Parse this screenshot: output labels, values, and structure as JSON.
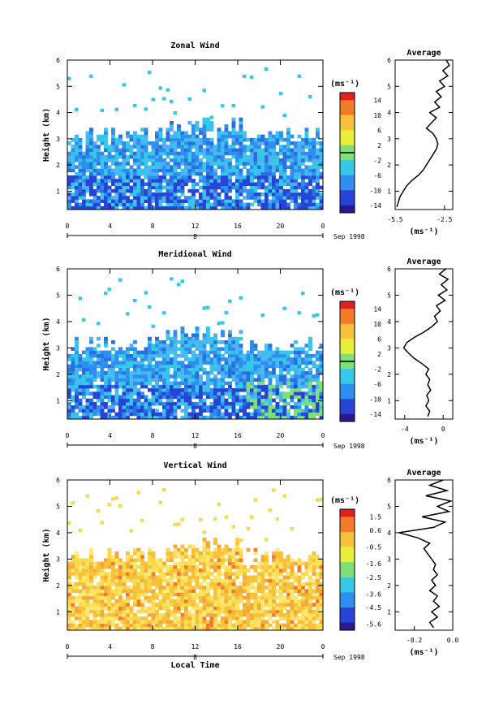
{
  "chart_data": [
    {
      "type": "heatmap",
      "title": "Zonal Wind",
      "ylabel": "Height (km)",
      "x_ticks": [
        "0",
        "4",
        "8",
        "12",
        "16",
        "20",
        "0"
      ],
      "x_range": [
        0,
        24
      ],
      "y_ticks": [
        "1",
        "2",
        "3",
        "4",
        "5",
        "6"
      ],
      "y_range": [
        0.3,
        6
      ],
      "date_label": "8",
      "month_label": "Sep 1998",
      "colorbar": {
        "unit": "(ms⁻¹)",
        "ticks": [
          "14",
          "10",
          "6",
          "2",
          "-2",
          "-6",
          "-10",
          "-14"
        ],
        "range": [
          -16,
          16
        ],
        "marked_level": 0
      },
      "profile": {
        "title": "Average",
        "xlabel": "(ms⁻¹)",
        "x_ticks": [
          "-5.5",
          "-2.5"
        ],
        "x_range": [
          -5.5,
          -2.0
        ],
        "points": [
          [
            -5.4,
            0.4
          ],
          [
            -5.3,
            0.6
          ],
          [
            -5.2,
            0.8
          ],
          [
            -5.0,
            1.0
          ],
          [
            -4.8,
            1.2
          ],
          [
            -4.5,
            1.4
          ],
          [
            -4.1,
            1.6
          ],
          [
            -3.8,
            1.8
          ],
          [
            -3.6,
            2.0
          ],
          [
            -3.4,
            2.2
          ],
          [
            -3.2,
            2.4
          ],
          [
            -3.0,
            2.6
          ],
          [
            -2.9,
            2.8
          ],
          [
            -3.0,
            3.0
          ],
          [
            -3.2,
            3.2
          ],
          [
            -3.6,
            3.4
          ],
          [
            -3.3,
            3.6
          ],
          [
            -3.0,
            3.8
          ],
          [
            -3.4,
            4.0
          ],
          [
            -2.8,
            4.2
          ],
          [
            -3.1,
            4.4
          ],
          [
            -2.7,
            4.6
          ],
          [
            -3.0,
            4.8
          ],
          [
            -2.5,
            5.0
          ],
          [
            -2.8,
            5.2
          ],
          [
            -2.3,
            5.4
          ],
          [
            -2.6,
            5.6
          ],
          [
            -2.2,
            5.8
          ],
          [
            -2.4,
            6.0
          ]
        ]
      }
    },
    {
      "type": "heatmap",
      "title": "Meridional Wind",
      "ylabel": "Height (km)",
      "x_ticks": [
        "0",
        "4",
        "8",
        "12",
        "16",
        "20",
        "0"
      ],
      "x_range": [
        0,
        24
      ],
      "y_ticks": [
        "1",
        "2",
        "3",
        "4",
        "5",
        "6"
      ],
      "y_range": [
        0.3,
        6
      ],
      "date_label": "8",
      "month_label": "Sep 1998",
      "colorbar": {
        "unit": "(ms⁻¹)",
        "ticks": [
          "14",
          "10",
          "6",
          "2",
          "-2",
          "-6",
          "-10",
          "-14"
        ],
        "range": [
          -16,
          16
        ],
        "marked_level": 0
      },
      "profile": {
        "title": "Average",
        "xlabel": "(ms⁻¹)",
        "x_ticks": [
          "-4",
          "0"
        ],
        "x_range": [
          -5.0,
          1.0
        ],
        "points": [
          [
            -1.6,
            0.4
          ],
          [
            -1.4,
            0.6
          ],
          [
            -1.8,
            0.8
          ],
          [
            -1.5,
            1.0
          ],
          [
            -1.7,
            1.2
          ],
          [
            -1.3,
            1.4
          ],
          [
            -1.6,
            1.6
          ],
          [
            -1.4,
            1.8
          ],
          [
            -1.8,
            2.0
          ],
          [
            -1.5,
            2.2
          ],
          [
            -2.2,
            2.4
          ],
          [
            -3.0,
            2.6
          ],
          [
            -3.6,
            2.8
          ],
          [
            -4.1,
            3.0
          ],
          [
            -3.8,
            3.2
          ],
          [
            -3.0,
            3.4
          ],
          [
            -2.0,
            3.6
          ],
          [
            -1.2,
            3.8
          ],
          [
            -0.6,
            4.0
          ],
          [
            -0.9,
            4.2
          ],
          [
            -0.3,
            4.4
          ],
          [
            -0.7,
            4.6
          ],
          [
            0.2,
            4.8
          ],
          [
            -0.5,
            5.0
          ],
          [
            0.4,
            5.2
          ],
          [
            -0.2,
            5.4
          ],
          [
            0.5,
            5.6
          ],
          [
            -0.4,
            5.8
          ],
          [
            0.3,
            6.0
          ]
        ]
      }
    },
    {
      "type": "heatmap",
      "title": "Vertical Wind",
      "ylabel": "Height (km)",
      "xlabel": "Local Time",
      "x_ticks": [
        "0",
        "4",
        "8",
        "12",
        "16",
        "20",
        "0"
      ],
      "x_range": [
        0,
        24
      ],
      "y_ticks": [
        "1",
        "2",
        "3",
        "4",
        "5",
        "6"
      ],
      "y_range": [
        0.3,
        6
      ],
      "date_label": "8",
      "month_label": "Sep 1998",
      "colorbar": {
        "unit": "(ms⁻¹)",
        "ticks": [
          "1.5",
          "0.6",
          "-0.5",
          "-1.6",
          "-2.5",
          "-3.6",
          "-4.5",
          "-5.6"
        ],
        "range": [
          -6.0,
          2.0
        ]
      },
      "profile": {
        "title": "Average",
        "xlabel": "(ms⁻¹)",
        "x_ticks": [
          "-0.2",
          "0.0"
        ],
        "x_range": [
          -0.3,
          0.0
        ],
        "points": [
          [
            -0.1,
            0.4
          ],
          [
            -0.12,
            0.6
          ],
          [
            -0.08,
            0.8
          ],
          [
            -0.11,
            1.0
          ],
          [
            -0.07,
            1.2
          ],
          [
            -0.1,
            1.4
          ],
          [
            -0.08,
            1.6
          ],
          [
            -0.12,
            1.8
          ],
          [
            -0.09,
            2.0
          ],
          [
            -0.11,
            2.2
          ],
          [
            -0.08,
            2.4
          ],
          [
            -0.1,
            2.6
          ],
          [
            -0.09,
            2.8
          ],
          [
            -0.11,
            3.0
          ],
          [
            -0.13,
            3.2
          ],
          [
            -0.15,
            3.4
          ],
          [
            -0.12,
            3.6
          ],
          [
            -0.18,
            3.8
          ],
          [
            -0.28,
            4.0
          ],
          [
            -0.1,
            4.2
          ],
          [
            -0.04,
            4.4
          ],
          [
            -0.16,
            4.6
          ],
          [
            -0.02,
            4.8
          ],
          [
            -0.08,
            5.0
          ],
          [
            -0.01,
            5.2
          ],
          [
            -0.14,
            5.4
          ],
          [
            -0.03,
            5.6
          ],
          [
            -0.12,
            5.8
          ],
          [
            -0.05,
            6.0
          ]
        ]
      }
    }
  ]
}
